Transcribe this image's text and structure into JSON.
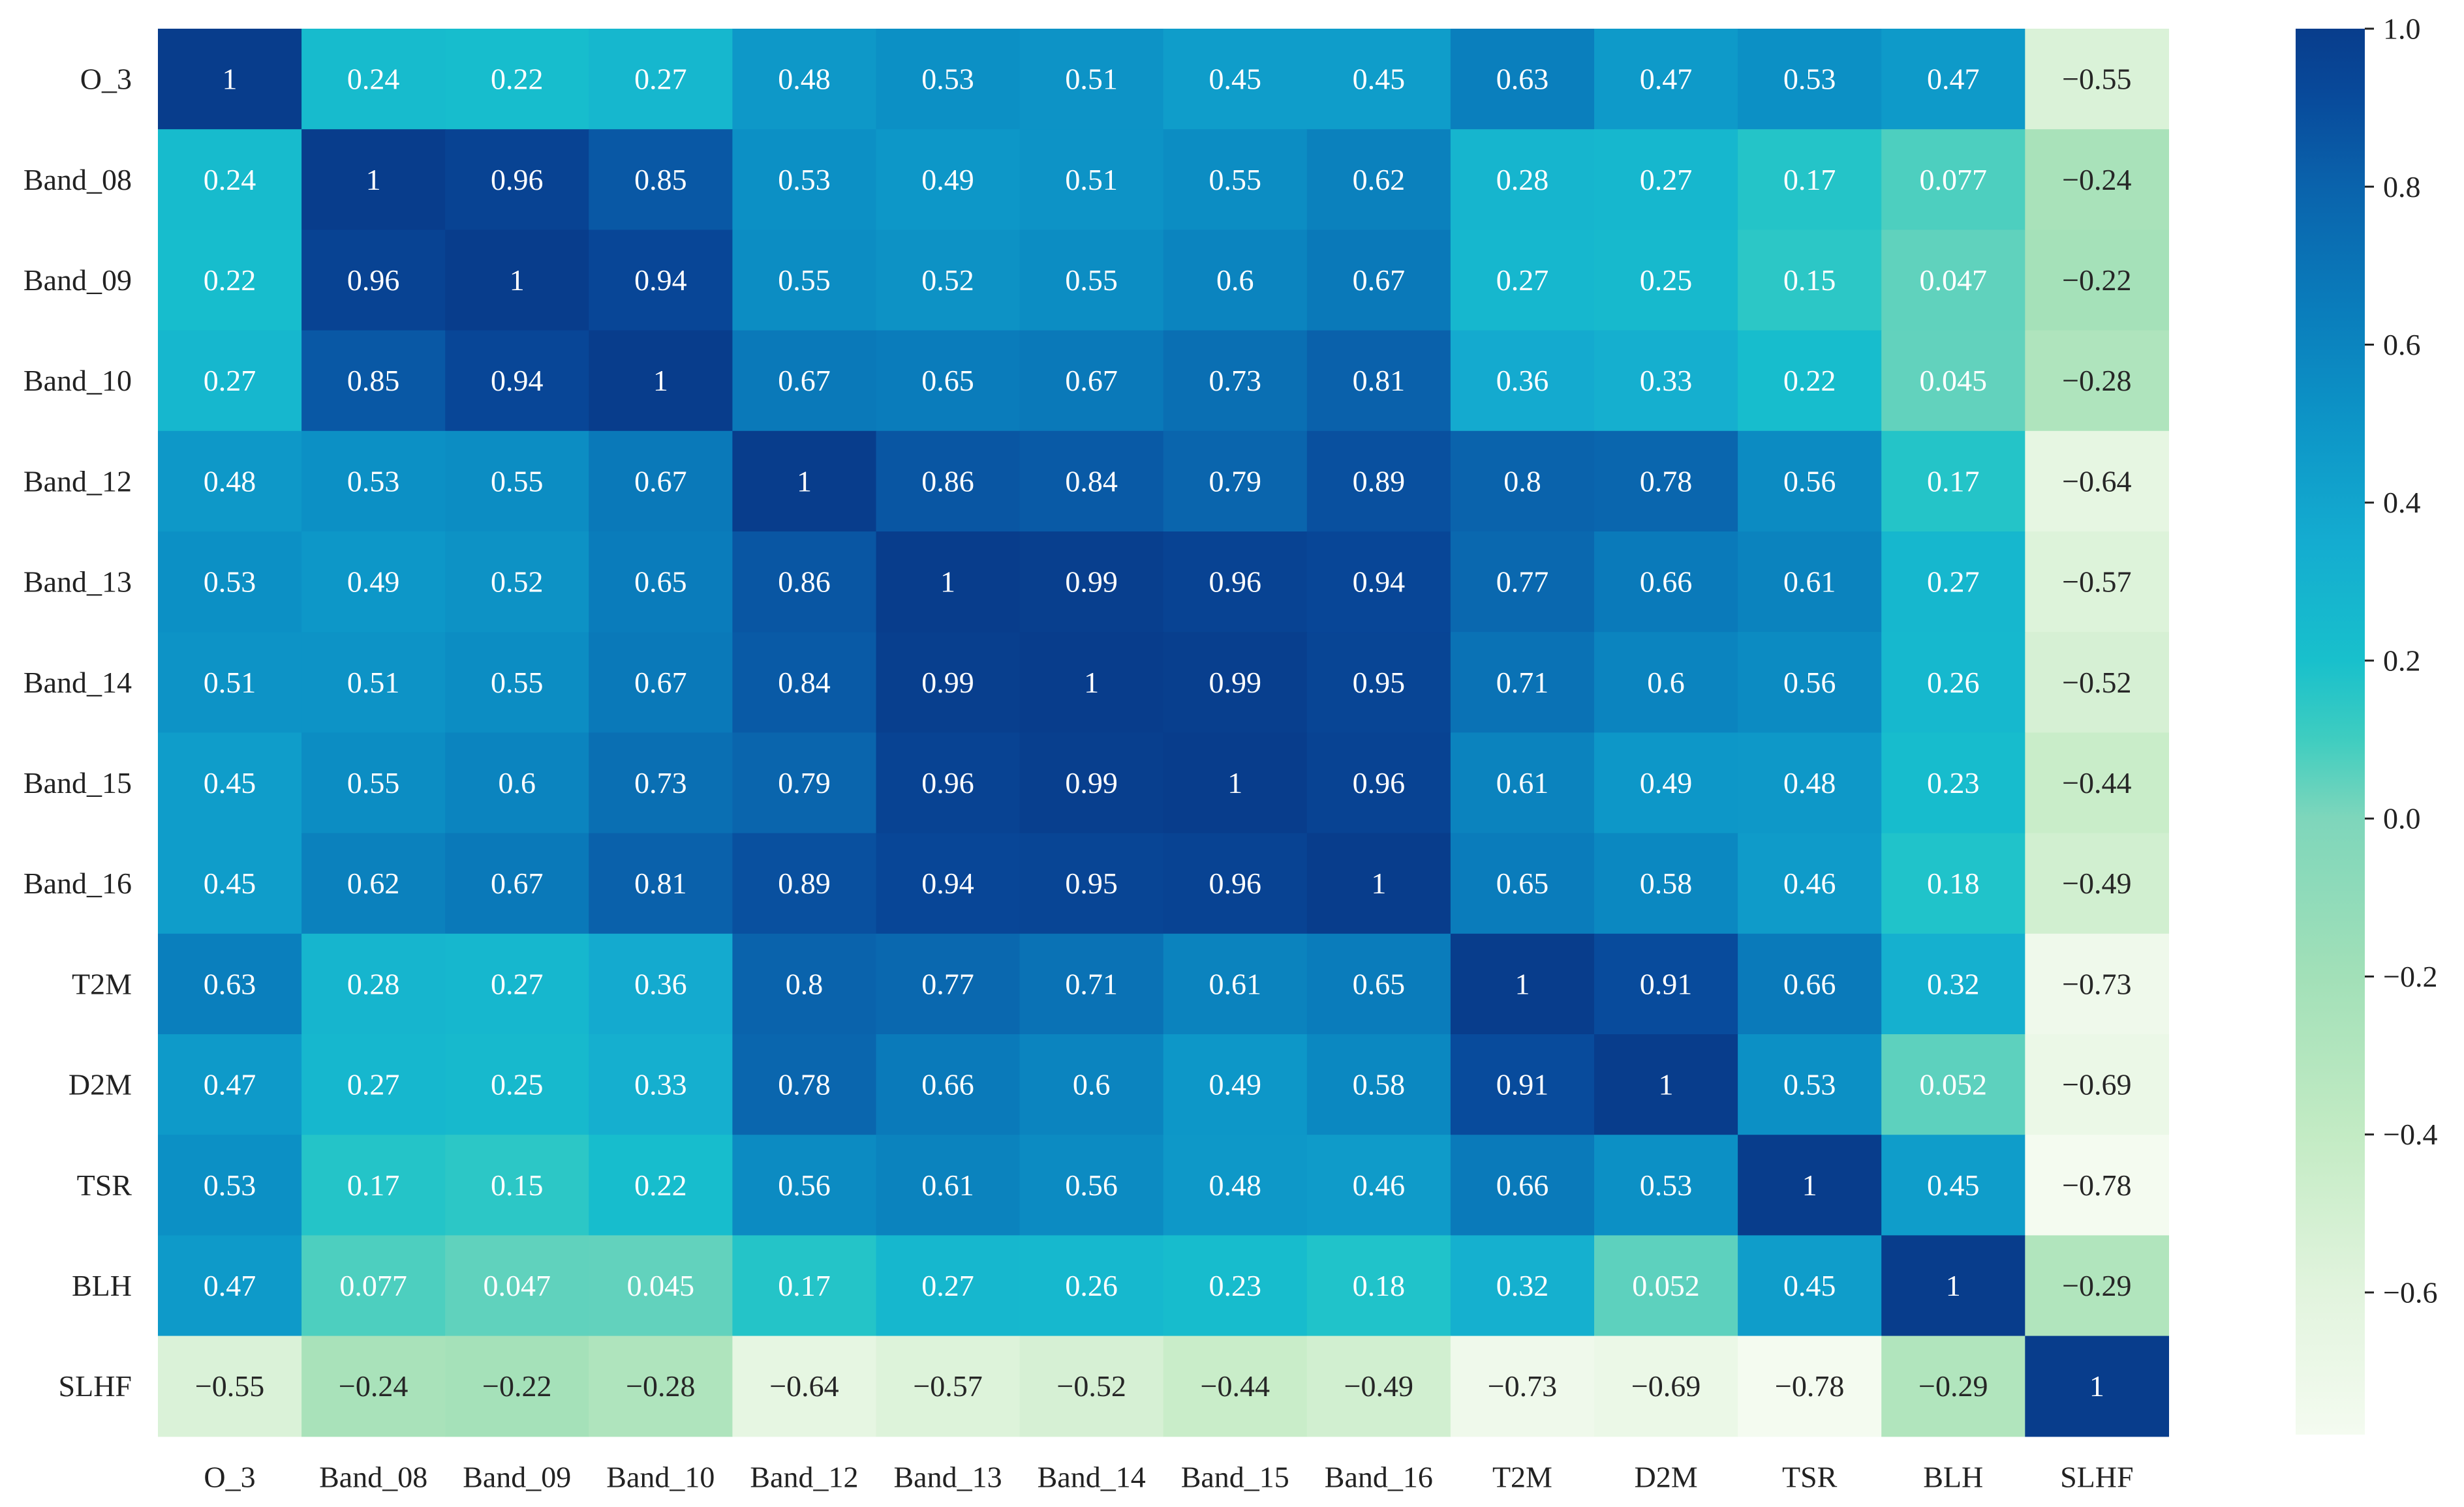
{
  "chart_data": {
    "type": "heatmap",
    "title": "",
    "xlabel": "",
    "ylabel": "",
    "labels": [
      "O_3",
      "Band_08",
      "Band_09",
      "Band_10",
      "Band_12",
      "Band_13",
      "Band_14",
      "Band_15",
      "Band_16",
      "T2M",
      "D2M",
      "TSR",
      "BLH",
      "SLHF"
    ],
    "matrix": [
      [
        "1",
        "0.24",
        "0.22",
        "0.27",
        "0.48",
        "0.53",
        "0.51",
        "0.45",
        "0.45",
        "0.63",
        "0.47",
        "0.53",
        "0.47",
        "−0.55"
      ],
      [
        "0.24",
        "1",
        "0.96",
        "0.85",
        "0.53",
        "0.49",
        "0.51",
        "0.55",
        "0.62",
        "0.28",
        "0.27",
        "0.17",
        "0.077",
        "−0.24"
      ],
      [
        "0.22",
        "0.96",
        "1",
        "0.94",
        "0.55",
        "0.52",
        "0.55",
        "0.6",
        "0.67",
        "0.27",
        "0.25",
        "0.15",
        "0.047",
        "−0.22"
      ],
      [
        "0.27",
        "0.85",
        "0.94",
        "1",
        "0.67",
        "0.65",
        "0.67",
        "0.73",
        "0.81",
        "0.36",
        "0.33",
        "0.22",
        "0.045",
        "−0.28"
      ],
      [
        "0.48",
        "0.53",
        "0.55",
        "0.67",
        "1",
        "0.86",
        "0.84",
        "0.79",
        "0.89",
        "0.8",
        "0.78",
        "0.56",
        "0.17",
        "−0.64"
      ],
      [
        "0.53",
        "0.49",
        "0.52",
        "0.65",
        "0.86",
        "1",
        "0.99",
        "0.96",
        "0.94",
        "0.77",
        "0.66",
        "0.61",
        "0.27",
        "−0.57"
      ],
      [
        "0.51",
        "0.51",
        "0.55",
        "0.67",
        "0.84",
        "0.99",
        "1",
        "0.99",
        "0.95",
        "0.71",
        "0.6",
        "0.56",
        "0.26",
        "−0.52"
      ],
      [
        "0.45",
        "0.55",
        "0.6",
        "0.73",
        "0.79",
        "0.96",
        "0.99",
        "1",
        "0.96",
        "0.61",
        "0.49",
        "0.48",
        "0.23",
        "−0.44"
      ],
      [
        "0.45",
        "0.62",
        "0.67",
        "0.81",
        "0.89",
        "0.94",
        "0.95",
        "0.96",
        "1",
        "0.65",
        "0.58",
        "0.46",
        "0.18",
        "−0.49"
      ],
      [
        "0.63",
        "0.28",
        "0.27",
        "0.36",
        "0.8",
        "0.77",
        "0.71",
        "0.61",
        "0.65",
        "1",
        "0.91",
        "0.66",
        "0.32",
        "−0.73"
      ],
      [
        "0.47",
        "0.27",
        "0.25",
        "0.33",
        "0.78",
        "0.66",
        "0.6",
        "0.49",
        "0.58",
        "0.91",
        "1",
        "0.53",
        "0.052",
        "−0.69"
      ],
      [
        "0.53",
        "0.17",
        "0.15",
        "0.22",
        "0.56",
        "0.61",
        "0.56",
        "0.48",
        "0.46",
        "0.66",
        "0.53",
        "1",
        "0.45",
        "−0.78"
      ],
      [
        "0.47",
        "0.077",
        "0.047",
        "0.045",
        "0.17",
        "0.27",
        "0.26",
        "0.23",
        "0.18",
        "0.32",
        "0.052",
        "0.45",
        "1",
        "−0.29"
      ],
      [
        "−0.55",
        "−0.24",
        "−0.22",
        "−0.28",
        "−0.64",
        "−0.57",
        "−0.52",
        "−0.44",
        "−0.49",
        "−0.73",
        "−0.69",
        "−0.78",
        "−0.29",
        "1"
      ]
    ],
    "colorbar": {
      "vmin": -0.78,
      "vmax": 1.0,
      "ticks": [
        1.0,
        0.8,
        0.6,
        0.4,
        0.2,
        0.0,
        -0.2,
        -0.4,
        -0.6
      ],
      "tick_labels": [
        "1.0",
        "0.8",
        "0.6",
        "0.4",
        "0.2",
        "0.0",
        "−0.2",
        "−0.4",
        "−0.6"
      ],
      "colormap": "YlGnBu-like",
      "stops": [
        {
          "v": -0.78,
          "color": "#f4fbf0"
        },
        {
          "v": -0.6,
          "color": "#e2f4de"
        },
        {
          "v": -0.4,
          "color": "#c3ebc4"
        },
        {
          "v": -0.2,
          "color": "#a2e0b8"
        },
        {
          "v": 0.0,
          "color": "#7ed6bb"
        },
        {
          "v": 0.1,
          "color": "#3fcdc0"
        },
        {
          "v": 0.2,
          "color": "#18c0cc"
        },
        {
          "v": 0.35,
          "color": "#14acd0"
        },
        {
          "v": 0.5,
          "color": "#0d95c7"
        },
        {
          "v": 0.65,
          "color": "#0a7cbb"
        },
        {
          "v": 0.8,
          "color": "#0a63ac"
        },
        {
          "v": 0.92,
          "color": "#08499a"
        },
        {
          "v": 1.0,
          "color": "#083d8c"
        }
      ]
    },
    "annotation_colors": {
      "light_text": "#ffffff",
      "dark_text": "#262626"
    }
  }
}
